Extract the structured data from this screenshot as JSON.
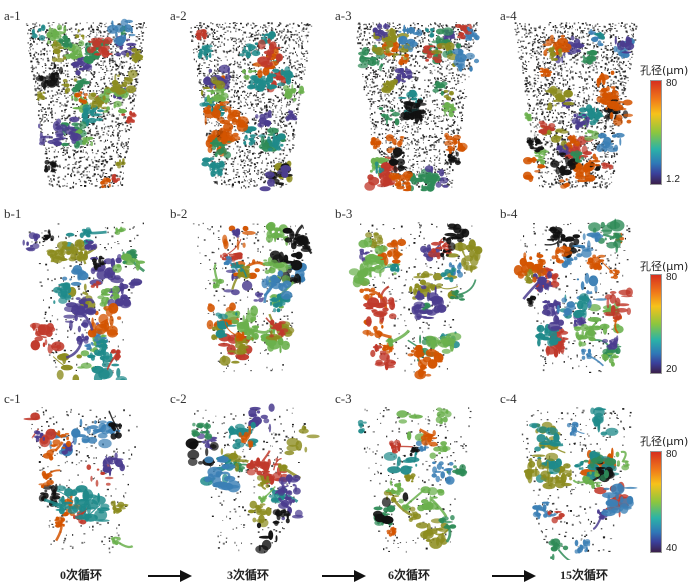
{
  "panels": {
    "a1": "a-1",
    "a2": "a-2",
    "a3": "a-3",
    "a4": "a-4",
    "b1": "b-1",
    "b2": "b-2",
    "b3": "b-3",
    "b4": "b-4",
    "c1": "c-1",
    "c2": "c-2",
    "c3": "c-3",
    "c4": "c-4"
  },
  "colorbars": {
    "a": {
      "title": "孔径(μm)",
      "max": "80",
      "min": "1.2"
    },
    "b": {
      "title": "孔径(μm)",
      "max": "80",
      "min": "20"
    },
    "c": {
      "title": "孔径(μm)",
      "max": "80",
      "min": "40"
    }
  },
  "cycles": [
    "0次循环",
    "3次循环",
    "6次循环",
    "15次循环"
  ],
  "colors": {
    "pore_palette": [
      "#c0392b",
      "#d35400",
      "#8c8c1f",
      "#6ab04c",
      "#2e8b57",
      "#1f8a8a",
      "#3b7fb5",
      "#4b3d8f",
      "#111111"
    ]
  }
}
